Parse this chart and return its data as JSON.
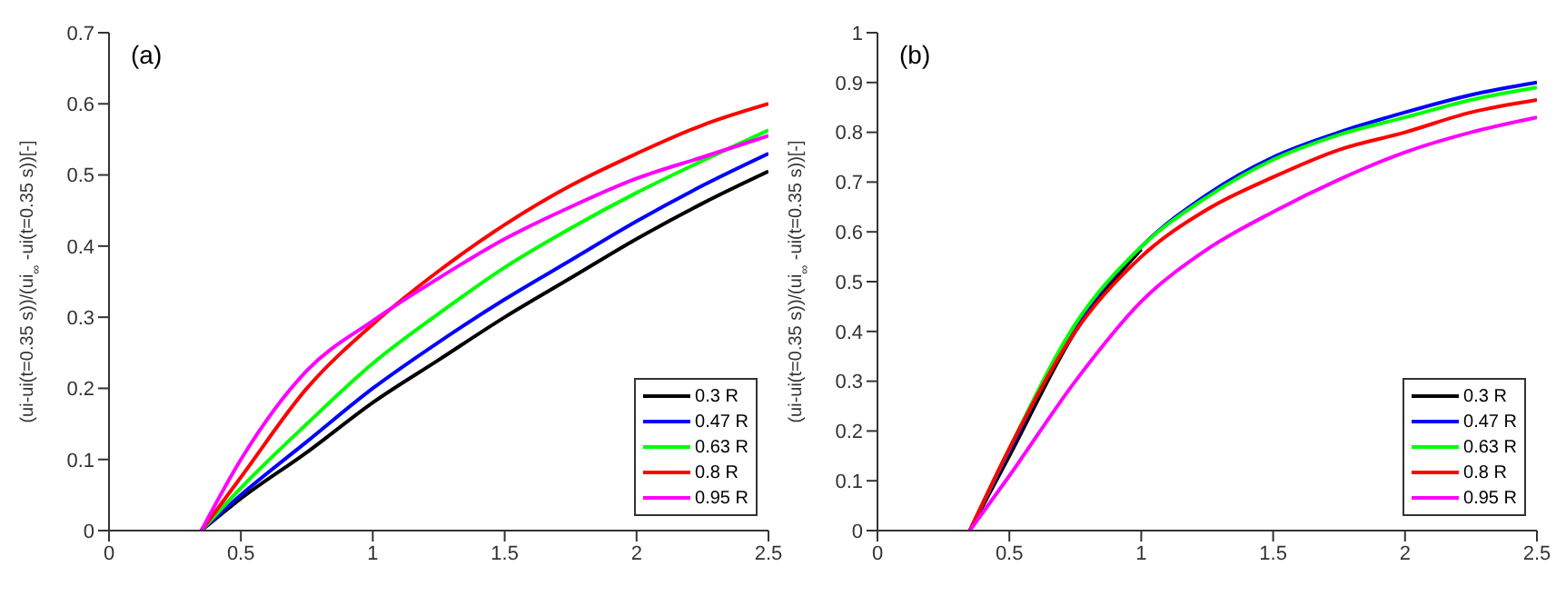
{
  "chart_data": [
    {
      "type": "line",
      "annotations": [
        "(a)"
      ],
      "ylabel": "(ui-ui(t=0.35 s))/(ui$_{∞}$ -ui(t=0.35 s))[-]",
      "x": [
        0.35,
        0.5,
        0.75,
        1,
        1.25,
        1.5,
        1.75,
        2,
        2.25,
        2.5
      ],
      "series": [
        {
          "name": "0.3 R",
          "color": "#000000",
          "values": [
            0,
            0.045,
            0.11,
            0.18,
            0.24,
            0.3,
            0.355,
            0.41,
            0.46,
            0.505
          ]
        },
        {
          "name": "0.47 R",
          "color": "#0000ff",
          "values": [
            0,
            0.05,
            0.125,
            0.2,
            0.265,
            0.325,
            0.38,
            0.435,
            0.485,
            0.53
          ]
        },
        {
          "name": "0.63 R",
          "color": "#00ff00",
          "values": [
            0,
            0.06,
            0.15,
            0.235,
            0.305,
            0.37,
            0.425,
            0.475,
            0.52,
            0.563
          ]
        },
        {
          "name": "0.8 R",
          "color": "#ff0000",
          "values": [
            0,
            0.075,
            0.2,
            0.29,
            0.365,
            0.43,
            0.485,
            0.53,
            0.57,
            0.6
          ]
        },
        {
          "name": "0.95 R",
          "color": "#ff00ff",
          "values": [
            0,
            0.1,
            0.225,
            0.295,
            0.355,
            0.41,
            0.455,
            0.495,
            0.525,
            0.555
          ]
        }
      ],
      "xlim": [
        0,
        2.5
      ],
      "xticks": [
        0,
        0.5,
        1,
        1.5,
        2,
        2.5
      ],
      "ylim": [
        0,
        0.7
      ],
      "yticks": [
        0,
        0.1,
        0.2,
        0.3,
        0.4,
        0.5,
        0.6,
        0.7
      ],
      "legend": "bottom right",
      "grid": false,
      "marker": "none"
    },
    {
      "type": "line",
      "annotations": [
        "(b)"
      ],
      "ylabel": "(ui-ui(t=0.35 s))/(ui$_{∞}$ -ui(t=0.35 s))[-]",
      "x": [
        0.35,
        0.5,
        0.75,
        1,
        1.25,
        1.5,
        1.75,
        2,
        2.25,
        2.5
      ],
      "series": [
        {
          "name": "0.3 R",
          "color": "#000000",
          "values": [
            0,
            0.15,
            0.4,
            0.565,
            null,
            null,
            null,
            null,
            null,
            null
          ]
        },
        {
          "name": "0.47 R",
          "color": "#0000ff",
          "values": [
            0,
            0.16,
            0.41,
            0.57,
            0.675,
            0.75,
            0.8,
            0.84,
            0.875,
            0.9
          ]
        },
        {
          "name": "0.63 R",
          "color": "#00ff00",
          "values": [
            0,
            0.165,
            0.415,
            0.57,
            0.67,
            0.745,
            0.795,
            0.83,
            0.865,
            0.89
          ]
        },
        {
          "name": "0.8 R",
          "color": "#ff0000",
          "values": [
            0,
            0.165,
            0.4,
            0.55,
            0.645,
            0.71,
            0.765,
            0.8,
            0.84,
            0.865
          ]
        },
        {
          "name": "0.95 R",
          "color": "#ff00ff",
          "values": [
            0,
            0.11,
            0.3,
            0.46,
            0.565,
            0.64,
            0.705,
            0.76,
            0.8,
            0.83
          ]
        }
      ],
      "xlim": [
        0,
        2.5
      ],
      "xticks": [
        0,
        0.5,
        1,
        1.5,
        2,
        2.5
      ],
      "ylim": [
        0,
        1
      ],
      "yticks": [
        0,
        0.1,
        0.2,
        0.3,
        0.4,
        0.5,
        0.6,
        0.7,
        0.8,
        0.9,
        1
      ],
      "legend": "bottom right",
      "grid": false,
      "marker": "none"
    }
  ]
}
